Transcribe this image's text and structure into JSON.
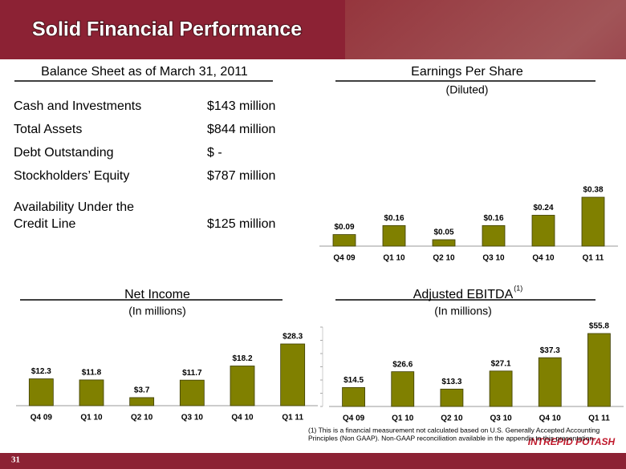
{
  "title": "Solid Financial Performance",
  "page_number": "31",
  "logo": "INTREPID POTASH",
  "balance_sheet": {
    "heading": "Balance Sheet as of March 31, 2011",
    "rows": [
      {
        "label": "Cash and Investments",
        "value": "$143  million"
      },
      {
        "label": "Total Assets",
        "value": "$844  million"
      },
      {
        "label": "Debt Outstanding",
        "value": "$  -"
      },
      {
        "label": "Stockholders’ Equity",
        "value": "$787  million"
      },
      {
        "label": [
          "Availability Under the",
          "Credit Line"
        ],
        "value": "$125  million"
      }
    ]
  },
  "chart_data": [
    {
      "type": "bar",
      "title": "Earnings Per Share",
      "subtitle": "(Diluted)",
      "categories": [
        "Q4 09",
        "Q1 10",
        "Q2 10",
        "Q3 10",
        "Q4 10",
        "Q1 11"
      ],
      "values": [
        0.09,
        0.16,
        0.05,
        0.16,
        0.24,
        0.38
      ],
      "value_labels": [
        "$0.09",
        "$0.16",
        "$0.05",
        "$0.16",
        "$0.24",
        "$0.38"
      ],
      "color": "#808000"
    },
    {
      "type": "bar",
      "title": "Net Income",
      "subtitle": "(In millions)",
      "categories": [
        "Q4 09",
        "Q1 10",
        "Q2 10",
        "Q3 10",
        "Q4 10",
        "Q1 11"
      ],
      "values": [
        12.3,
        11.8,
        3.7,
        11.7,
        18.2,
        28.3
      ],
      "value_labels": [
        "$12.3",
        "$11.8",
        "$3.7",
        "$11.7",
        "$18.2",
        "$28.3"
      ],
      "color": "#808000"
    },
    {
      "type": "bar",
      "title": "Adjusted EBITDA",
      "title_note": "(1)",
      "subtitle": "(In millions)",
      "categories": [
        "Q4 09",
        "Q1 10",
        "Q2 10",
        "Q3 10",
        "Q4 10",
        "Q1 11"
      ],
      "values": [
        14.5,
        26.6,
        13.3,
        27.1,
        37.3,
        55.8
      ],
      "value_labels": [
        "$14.5",
        "$26.6",
        "$13.3",
        "$27.1",
        "$37.3",
        "$55.8"
      ],
      "color": "#808000"
    }
  ],
  "footnote": [
    "(1)   This is a financial  measurement not calculated based on U.S. Generally Accepted Accounting",
    "Principles (Non GAAP).   Non-GAAP reconciliation available in the appendix to this presentation."
  ]
}
